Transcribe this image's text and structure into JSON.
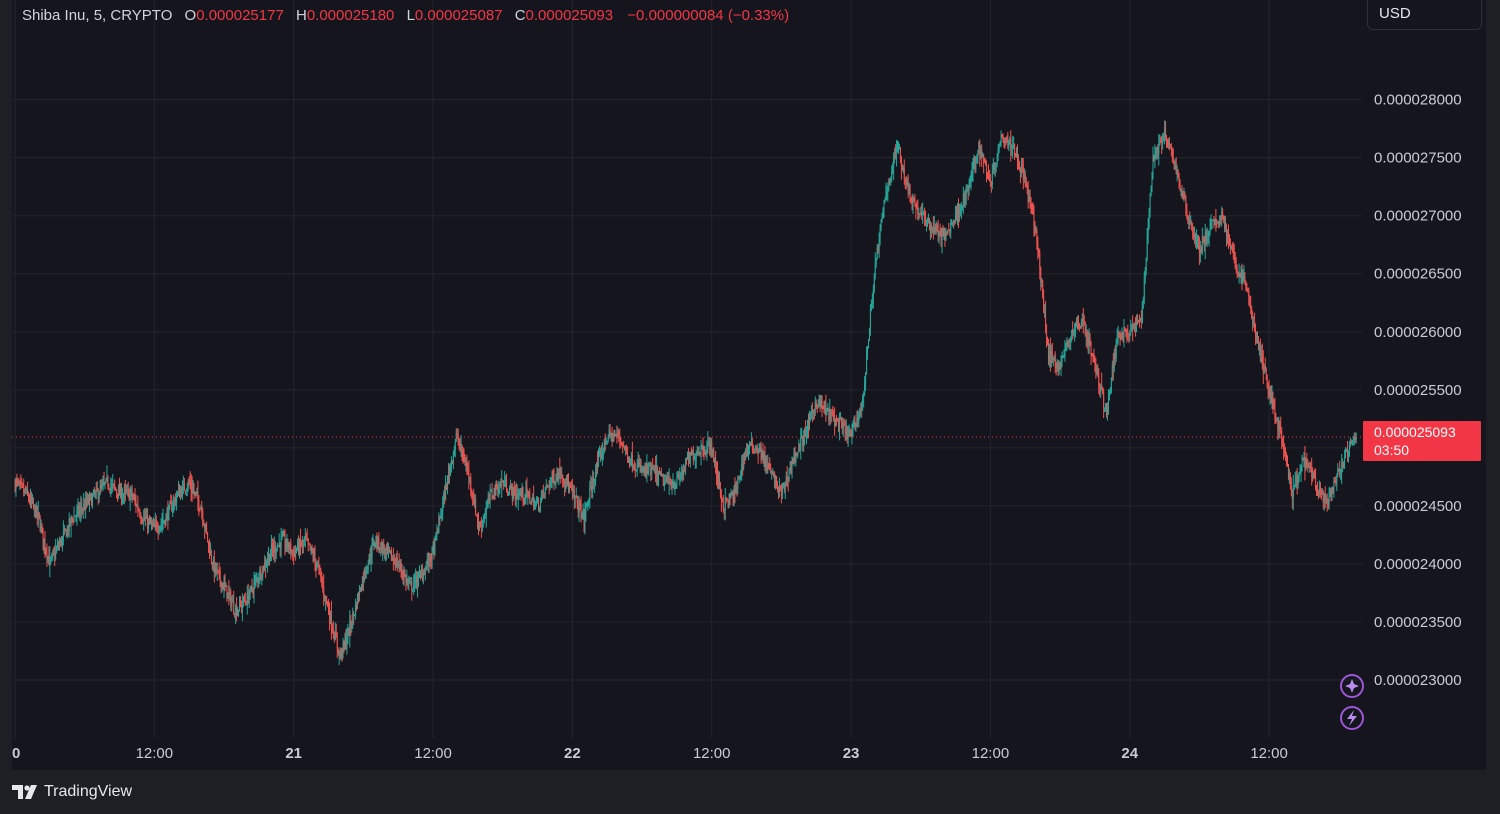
{
  "legend": {
    "symbol": "Shiba Inu, 5, CRYPTO",
    "open_label": "O",
    "open": "0.000025177",
    "high_label": "H",
    "high": "0.000025180",
    "low_label": "L",
    "low": "0.000025087",
    "close_label": "C",
    "close": "0.000025093",
    "change": "−0.000000084 (−0.33%)"
  },
  "currency": "USD",
  "price_tag": {
    "price": "0.000025093",
    "countdown": "03:50"
  },
  "brand": "TradingView",
  "colors": {
    "up": "#26a69a",
    "down": "#ef5350",
    "background": "#15161d",
    "grid": "#23252d",
    "accent": "#9c56d8"
  },
  "icons": [
    "sparkle-icon",
    "lightning-icon"
  ],
  "chart_data": {
    "type": "candlestick",
    "interval": "5",
    "y_ticks": [
      2.3e-05,
      2.35e-05,
      2.4e-05,
      2.45e-05,
      2.5e-05,
      2.55e-05,
      2.6e-05,
      2.65e-05,
      2.7e-05,
      2.75e-05,
      2.8e-05
    ],
    "y_tick_labels": [
      "0.000023000",
      "0.000023500",
      "0.000024000",
      "0.000024500",
      "",
      "0.000025500",
      "0.000026000",
      "0.000026500",
      "0.000027000",
      "0.000027500",
      "0.000028000"
    ],
    "ylim": [
      2.25e-05,
      2.86e-05
    ],
    "x_ticks": [
      {
        "label": "0",
        "bold": true
      },
      {
        "label": "12:00",
        "bold": false
      },
      {
        "label": "21",
        "bold": true
      },
      {
        "label": "12:00",
        "bold": false
      },
      {
        "label": "22",
        "bold": true
      },
      {
        "label": "12:00",
        "bold": false
      },
      {
        "label": "23",
        "bold": true
      },
      {
        "label": "12:00",
        "bold": false
      },
      {
        "label": "24",
        "bold": true
      },
      {
        "label": "12:00",
        "bold": false
      }
    ],
    "xlim_hours": [
      0,
      116
    ],
    "x_tick_hours": [
      0,
      12,
      24,
      36,
      48,
      60,
      72,
      84,
      96,
      108
    ],
    "last_price": 2.5093e-05,
    "price_path": [
      [
        0,
        2.47e-05
      ],
      [
        1,
        2.46e-05
      ],
      [
        2,
        2.44e-05
      ],
      [
        3,
        2.4e-05
      ],
      [
        4,
        2.42e-05
      ],
      [
        5,
        2.44e-05
      ],
      [
        6,
        2.45e-05
      ],
      [
        7,
        2.46e-05
      ],
      [
        8,
        2.47e-05
      ],
      [
        9,
        2.46e-05
      ],
      [
        10,
        2.46e-05
      ],
      [
        11,
        2.44e-05
      ],
      [
        12,
        2.43e-05
      ],
      [
        13,
        2.44e-05
      ],
      [
        14,
        2.46e-05
      ],
      [
        15,
        2.47e-05
      ],
      [
        16,
        2.45e-05
      ],
      [
        17,
        2.4e-05
      ],
      [
        18,
        2.38e-05
      ],
      [
        19,
        2.36e-05
      ],
      [
        20,
        2.37e-05
      ],
      [
        21,
        2.39e-05
      ],
      [
        22,
        2.41e-05
      ],
      [
        23,
        2.42e-05
      ],
      [
        24,
        2.41e-05
      ],
      [
        25,
        2.42e-05
      ],
      [
        26,
        2.4e-05
      ],
      [
        27,
        2.36e-05
      ],
      [
        28,
        2.32e-05
      ],
      [
        29,
        2.35e-05
      ],
      [
        30,
        2.39e-05
      ],
      [
        31,
        2.42e-05
      ],
      [
        32,
        2.41e-05
      ],
      [
        33,
        2.4e-05
      ],
      [
        34,
        2.38e-05
      ],
      [
        35,
        2.39e-05
      ],
      [
        36,
        2.41e-05
      ],
      [
        37,
        2.46e-05
      ],
      [
        38,
        2.51e-05
      ],
      [
        39,
        2.48e-05
      ],
      [
        40,
        2.43e-05
      ],
      [
        41,
        2.46e-05
      ],
      [
        42,
        2.47e-05
      ],
      [
        43,
        2.46e-05
      ],
      [
        44,
        2.46e-05
      ],
      [
        45,
        2.45e-05
      ],
      [
        46,
        2.47e-05
      ],
      [
        47,
        2.48e-05
      ],
      [
        48,
        2.46e-05
      ],
      [
        49,
        2.44e-05
      ],
      [
        50,
        2.48e-05
      ],
      [
        51,
        2.51e-05
      ],
      [
        52,
        2.51e-05
      ],
      [
        53,
        2.49e-05
      ],
      [
        54,
        2.48e-05
      ],
      [
        55,
        2.48e-05
      ],
      [
        56,
        2.47e-05
      ],
      [
        57,
        2.47e-05
      ],
      [
        58,
        2.49e-05
      ],
      [
        59,
        2.5e-05
      ],
      [
        60,
        2.5e-05
      ],
      [
        61,
        2.45e-05
      ],
      [
        62,
        2.46e-05
      ],
      [
        63,
        2.5e-05
      ],
      [
        64,
        2.5e-05
      ],
      [
        65,
        2.48e-05
      ],
      [
        66,
        2.46e-05
      ],
      [
        67,
        2.49e-05
      ],
      [
        68,
        2.51e-05
      ],
      [
        69,
        2.54e-05
      ],
      [
        70,
        2.53e-05
      ],
      [
        71,
        2.52e-05
      ],
      [
        72,
        2.51e-05
      ],
      [
        73,
        2.54e-05
      ],
      [
        74,
        2.65e-05
      ],
      [
        75,
        2.72e-05
      ],
      [
        76,
        2.76e-05
      ],
      [
        77,
        2.72e-05
      ],
      [
        78,
        2.7e-05
      ],
      [
        79,
        2.69e-05
      ],
      [
        80,
        2.68e-05
      ],
      [
        81,
        2.7e-05
      ],
      [
        82,
        2.72e-05
      ],
      [
        83,
        2.76e-05
      ],
      [
        84,
        2.73e-05
      ],
      [
        85,
        2.77e-05
      ],
      [
        86,
        2.76e-05
      ],
      [
        87,
        2.73e-05
      ],
      [
        88,
        2.68e-05
      ],
      [
        89,
        2.58e-05
      ],
      [
        90,
        2.57e-05
      ],
      [
        91,
        2.6e-05
      ],
      [
        92,
        2.61e-05
      ],
      [
        93,
        2.57e-05
      ],
      [
        94,
        2.53e-05
      ],
      [
        95,
        2.6e-05
      ],
      [
        96,
        2.6e-05
      ],
      [
        97,
        2.61e-05
      ],
      [
        98,
        2.75e-05
      ],
      [
        99,
        2.77e-05
      ],
      [
        100,
        2.74e-05
      ],
      [
        101,
        2.7e-05
      ],
      [
        102,
        2.67e-05
      ],
      [
        103,
        2.69e-05
      ],
      [
        104,
        2.7e-05
      ],
      [
        105,
        2.66e-05
      ],
      [
        106,
        2.64e-05
      ],
      [
        107,
        2.59e-05
      ],
      [
        108,
        2.55e-05
      ],
      [
        109,
        2.51e-05
      ],
      [
        110,
        2.46e-05
      ],
      [
        111,
        2.49e-05
      ],
      [
        112,
        2.47e-05
      ],
      [
        113,
        2.45e-05
      ],
      [
        114,
        2.48e-05
      ],
      [
        115,
        2.5e-05
      ],
      [
        115.5,
        2.509e-05
      ]
    ]
  }
}
